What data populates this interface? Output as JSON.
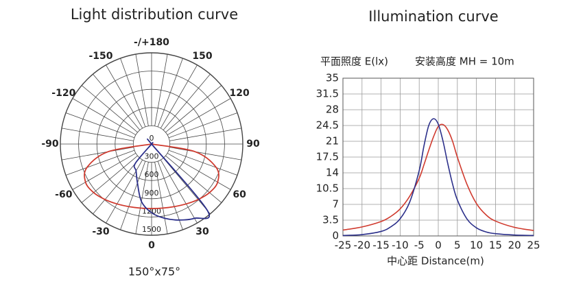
{
  "chart_data": [
    {
      "type": "polar",
      "title": "Light distribution curve",
      "caption": "150°x75°",
      "theta": [
        -90,
        -80,
        -70,
        -60,
        -50,
        -40,
        -30,
        -20,
        -10,
        0,
        10,
        20,
        30,
        40,
        50,
        60,
        70,
        80,
        90
      ],
      "series": [
        {
          "color": "#d03a2e",
          "values": [
            0,
            726,
            1132,
            1254,
            1243,
            1191,
            1137,
            1095,
            1069,
            1060,
            1069,
            1095,
            1137,
            1191,
            1243,
            1254,
            1132,
            726,
            0
          ]
        },
        {
          "color": "#2b2f8a",
          "values": [
            0,
            0,
            0,
            0,
            0,
            420,
            510,
            680,
            960,
            1130,
            1240,
            1330,
            1410,
            1430,
            0,
            0,
            0,
            0,
            0
          ]
        }
      ],
      "rlim": [
        0,
        1500
      ],
      "rticks": [
        0,
        300,
        600,
        900,
        1200,
        1500
      ],
      "thetaticks": [
        0,
        30,
        60,
        90,
        120,
        150,
        {
          "value": 180,
          "label": "-/+180"
        },
        -150,
        -120,
        -90,
        -60,
        -30
      ]
    },
    {
      "type": "line",
      "title": "Illumination curve",
      "annotations": [
        "平面照度 E(lx)",
        "安装高度 MH = 10m"
      ],
      "xlabel": "中心距 Distance(m)",
      "x": [
        -25,
        -20,
        -15,
        -12.5,
        -10,
        -7.5,
        -5,
        -3.75,
        -2.5,
        -1.25,
        0,
        1.25,
        2.5,
        3.75,
        5,
        7.5,
        10,
        12.5,
        15,
        20,
        25
      ],
      "series": [
        {
          "color": "#d03a2e",
          "values": [
            1.3,
            2.0,
            3.2,
            4.3,
            6.0,
            8.8,
            12.8,
            15.8,
            19,
            22,
            24.3,
            24.7,
            23.5,
            21,
            17.5,
            11.5,
            7.2,
            4.7,
            3.3,
            1.9,
            1.2
          ]
        },
        {
          "color": "#2b2f8a",
          "values": [
            0.1,
            0.3,
            1.0,
            2.0,
            3.8,
            7.5,
            14.5,
            20,
            24.5,
            26,
            24.8,
            21,
            16,
            11.5,
            8,
            3.8,
            1.8,
            0.9,
            0.5,
            0.2,
            0.1
          ]
        }
      ],
      "xlim": [
        -25,
        25
      ],
      "ylim": [
        0,
        35
      ],
      "xticks": [
        -25,
        -20,
        -15,
        -10,
        -5,
        0,
        5,
        10,
        15,
        20,
        25
      ],
      "yticks": [
        0,
        3.5,
        7,
        10.5,
        14,
        17.5,
        21,
        24.5,
        28,
        31.5,
        35
      ],
      "grid": true
    }
  ]
}
